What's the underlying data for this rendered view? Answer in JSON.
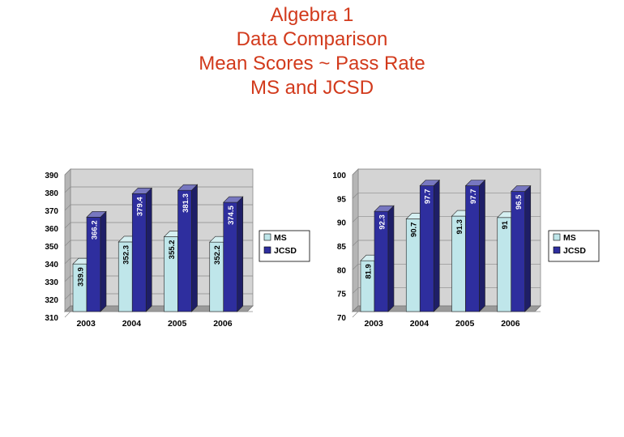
{
  "title_lines": [
    "Algebra 1",
    "Data Comparison",
    "Mean Scores ~ Pass Rate",
    "MS and JCSD"
  ],
  "colors": {
    "title": "#d23a1c",
    "ms": "#bfe6ea",
    "jcsd": "#2e2e9e",
    "wall": "#c9c9c9",
    "floor": "#9e9e9e"
  },
  "chart_data": [
    {
      "type": "bar",
      "title": "Mean Scores",
      "categories": [
        "2003",
        "2004",
        "2005",
        "2006"
      ],
      "series": [
        {
          "name": "MS",
          "values": [
            339.9,
            352.3,
            355.2,
            352.2
          ],
          "labels": [
            "339.9",
            "352.3",
            "355.2",
            "352.2"
          ]
        },
        {
          "name": "JCSD",
          "values": [
            366.2,
            379.4,
            381.3,
            374.5
          ],
          "labels": [
            "366.2",
            "379.4",
            "381.3",
            "374.5"
          ]
        }
      ],
      "ylim": [
        310,
        390
      ],
      "yticks": [
        "310",
        "320",
        "330",
        "340",
        "350",
        "360",
        "370",
        "380",
        "390"
      ],
      "legend": [
        "MS",
        "JCSD"
      ],
      "legend_position": "right",
      "grid": true
    },
    {
      "type": "bar",
      "title": "Pass Rate",
      "categories": [
        "2003",
        "2004",
        "2005",
        "2006"
      ],
      "series": [
        {
          "name": "MS",
          "values": [
            81.9,
            90.7,
            91.3,
            91
          ],
          "labels": [
            "81.9",
            "90.7",
            "91.3",
            "91"
          ]
        },
        {
          "name": "JCSD",
          "values": [
            92.3,
            97.7,
            97.7,
            96.5
          ],
          "labels": [
            "92.3",
            "97.7",
            "97.7",
            "96.5"
          ]
        }
      ],
      "ylim": [
        70,
        100
      ],
      "yticks": [
        "70",
        "75",
        "80",
        "85",
        "90",
        "95",
        "100"
      ],
      "legend": [
        "MS",
        "JCSD"
      ],
      "legend_position": "right",
      "grid": true
    }
  ]
}
